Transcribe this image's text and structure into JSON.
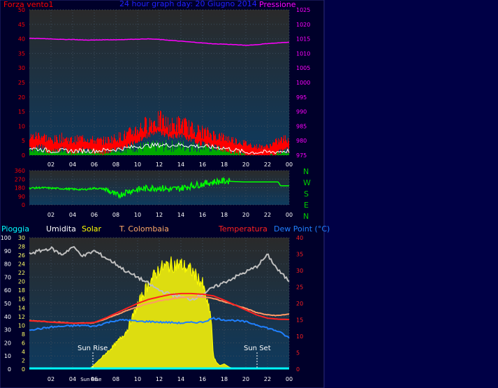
{
  "colors": {
    "background": "#000046",
    "frame": "#00002a",
    "plot_top": "#2a2a2a",
    "plot_bottom": "#0e3a5e",
    "grid": "#3c4c5c",
    "wind_avg": "#00aa00",
    "wind_gust": "#ff0000",
    "wind_mean_line": "#ffffff",
    "pressure": "#ff00ff",
    "direction": "#00ff00",
    "direction_label": "#00cc00",
    "rain": "#00ffff",
    "humidity": "#c0c0c0",
    "solar": "#ffff00",
    "colombaia": "#ff9966",
    "temperature": "#ff2020",
    "dewpoint": "#2080ff",
    "axis_text": "#ffffff",
    "left_axis_text": "#ff0000"
  },
  "wind_panel": {
    "title": "24 hour graph day:  20 Giugno 2014",
    "left_label": "Forza vento1",
    "right_label": "Pressione"
  },
  "direction_panel": {
    "compass": [
      "N",
      "W",
      "S",
      "E",
      "N"
    ]
  },
  "lower_panel": {
    "legend": {
      "rain": "Pioggia",
      "humidity": "Umidita",
      "solar": "Solar",
      "colombaia": "T. Colombaia",
      "temperature": "Temperatura",
      "dewpoint": "Dew Point (°C)"
    },
    "sunrise_label": "Sun Rise",
    "sunset_label": "Sun Set",
    "sunrise_axis_label": "Sun Rise"
  },
  "chart_data": [
    {
      "type": "line",
      "id": "wind_pressure",
      "title": "24 hour graph day:  20 Giugno 2014",
      "x_ticks": [
        "02",
        "04",
        "06",
        "08",
        "10",
        "12",
        "14",
        "16",
        "18",
        "20",
        "22",
        "00"
      ],
      "x_range_hours": [
        0,
        24
      ],
      "left_axis": {
        "label": "Forza vento1",
        "ticks": [
          0,
          5,
          10,
          15,
          20,
          25,
          30,
          35,
          40,
          45,
          50
        ],
        "range": [
          0,
          50
        ]
      },
      "right_axis": {
        "label": "Pressione",
        "ticks": [
          975,
          980,
          985,
          990,
          995,
          1000,
          1005,
          1010,
          1015,
          1020,
          1025
        ],
        "range": [
          975,
          1025
        ]
      },
      "series": [
        {
          "name": "Pressione",
          "axis": "right",
          "x": [
            0,
            1,
            2,
            3,
            4,
            5,
            6,
            7,
            8,
            9,
            10,
            11,
            12,
            13,
            14,
            15,
            16,
            17,
            18,
            19,
            20,
            21,
            22,
            23,
            24
          ],
          "y": [
            1015.2,
            1015.1,
            1015.0,
            1014.8,
            1014.8,
            1014.6,
            1014.6,
            1014.7,
            1014.7,
            1014.8,
            1014.9,
            1015.0,
            1014.8,
            1014.5,
            1014.2,
            1013.9,
            1013.6,
            1013.3,
            1013.2,
            1013.0,
            1012.8,
            1013.0,
            1013.4,
            1013.6,
            1013.9
          ]
        },
        {
          "name": "gust",
          "x": [
            0,
            1,
            2,
            3,
            4,
            5,
            6,
            7,
            8,
            9,
            10,
            11,
            12,
            13,
            14,
            15,
            16,
            17,
            18,
            19,
            20,
            21,
            22,
            23,
            24
          ],
          "y": [
            6,
            7,
            5,
            6,
            5,
            6,
            5,
            5,
            6,
            7,
            9,
            11,
            12,
            10,
            11,
            9,
            8,
            7,
            6,
            5,
            4,
            3,
            3,
            5,
            6
          ]
        },
        {
          "name": "average",
          "x": [
            0,
            2,
            4,
            6,
            8,
            10,
            12,
            14,
            16,
            18,
            20,
            22,
            24
          ],
          "y": [
            2.5,
            1.5,
            1.5,
            1.5,
            2.0,
            3.0,
            3.5,
            3.5,
            3.0,
            2.5,
            1.0,
            1.0,
            1.5
          ]
        }
      ]
    },
    {
      "type": "line",
      "id": "wind_direction",
      "x_ticks": [
        "02",
        "04",
        "06",
        "08",
        "10",
        "12",
        "14",
        "16",
        "18",
        "20",
        "22",
        "00"
      ],
      "y_axis": {
        "ticks": [
          0,
          90,
          180,
          270,
          360
        ],
        "range": [
          0,
          360
        ]
      },
      "series": [
        {
          "name": "direction",
          "x": [
            0,
            1,
            2,
            3,
            4,
            5,
            6,
            7,
            7.5,
            8,
            8.5,
            9,
            10,
            11,
            12,
            13,
            14,
            15,
            16,
            17,
            18,
            19,
            20,
            21,
            22,
            23,
            23.2,
            24
          ],
          "y": [
            175,
            180,
            175,
            170,
            165,
            160,
            175,
            165,
            135,
            100,
            110,
            140,
            160,
            175,
            180,
            160,
            175,
            200,
            220,
            240,
            250,
            245,
            240,
            240,
            240,
            240,
            200,
            200
          ]
        }
      ]
    },
    {
      "type": "line",
      "id": "temperature_humidity_solar",
      "x_ticks": [
        "02",
        "04",
        "Sun Rise",
        "06",
        "08",
        "10",
        "12",
        "14",
        "16",
        "18",
        "20",
        "22",
        "00"
      ],
      "left_axis": {
        "label": "Pioggia / Umidita",
        "ticks": [
          0,
          10,
          20,
          30,
          40,
          50,
          60,
          70,
          80,
          90,
          100
        ],
        "range": [
          0,
          100
        ]
      },
      "solar_axis": {
        "label": "Solar",
        "ticks": [
          0,
          2,
          4,
          6,
          8,
          10,
          12,
          14,
          16,
          18,
          20,
          22,
          24,
          26,
          28,
          30
        ],
        "range": [
          0,
          30
        ]
      },
      "right_axis": {
        "label": "Temperatura (°C)",
        "ticks": [
          0,
          5,
          10,
          15,
          20,
          25,
          30,
          35,
          40
        ],
        "range": [
          0,
          40
        ]
      },
      "annotations": [
        {
          "label": "Sun Rise",
          "x": 5.7
        },
        {
          "label": "Sun Set",
          "x": 21.2
        }
      ],
      "series": [
        {
          "name": "Umidita",
          "axis": "left",
          "x": [
            0,
            1,
            2,
            3,
            4,
            5,
            6,
            7,
            8,
            9,
            10,
            11,
            12,
            13,
            14,
            15,
            16,
            17,
            18,
            19,
            20,
            21,
            22,
            23,
            24
          ],
          "y": [
            88,
            90,
            92,
            87,
            93,
            86,
            90,
            85,
            80,
            74,
            70,
            65,
            60,
            57,
            55,
            53,
            57,
            62,
            66,
            70,
            74,
            78,
            87,
            75,
            67
          ]
        },
        {
          "name": "Solar",
          "axis": "solar",
          "x": [
            0,
            5.5,
            6,
            7,
            8,
            9,
            10,
            11,
            12,
            13,
            14,
            15,
            16,
            16.8,
            17,
            17.3,
            17.6,
            18,
            18.5,
            19,
            20,
            21,
            24
          ],
          "y": [
            0,
            0,
            1,
            3.5,
            6,
            9,
            15,
            20,
            23.5,
            24.5,
            24.5,
            23,
            20,
            12,
            3,
            1.5,
            0.8,
            1.2,
            0.4,
            0.2,
            0.1,
            0,
            0
          ]
        },
        {
          "name": "T. Colombaia",
          "axis": "right",
          "x": [
            0,
            1,
            2,
            3,
            4,
            5,
            6,
            7,
            8,
            9,
            10,
            11,
            12,
            13,
            14,
            15,
            16,
            17,
            18,
            19,
            20,
            21,
            22,
            23,
            24
          ],
          "y": [
            14.8,
            14.6,
            14.4,
            14.2,
            14.0,
            14.0,
            14.1,
            15.2,
            16.5,
            17.8,
            19.0,
            20.0,
            20.8,
            21.3,
            21.8,
            22.0,
            22.0,
            21.5,
            20.5,
            19.5,
            18.5,
            17.2,
            16.5,
            16.3,
            16.8
          ]
        },
        {
          "name": "Temperatura",
          "axis": "right",
          "x": [
            0,
            1,
            2,
            3,
            4,
            5,
            6,
            7,
            8,
            9,
            10,
            11,
            12,
            13,
            14,
            15,
            16,
            17,
            18,
            19,
            20,
            21,
            22,
            23,
            24
          ],
          "y": [
            14.7,
            14.6,
            14.3,
            14.1,
            14.0,
            14.0,
            14.2,
            15.5,
            17.0,
            18.5,
            20.0,
            21.2,
            22.0,
            22.7,
            23.0,
            23.0,
            22.8,
            22.3,
            21.0,
            19.5,
            18.0,
            16.5,
            15.5,
            15.2,
            15.1
          ]
        },
        {
          "name": "Dew Point",
          "axis": "right",
          "x": [
            0,
            1,
            2,
            3,
            4,
            5,
            6,
            7,
            8,
            9,
            10,
            11,
            12,
            13,
            14,
            15,
            16,
            17,
            18,
            19,
            20,
            21,
            22,
            23,
            24
          ],
          "y": [
            12.0,
            12.3,
            12.8,
            13.0,
            13.2,
            13.3,
            13.0,
            14.0,
            14.8,
            15.0,
            14.5,
            14.5,
            14.3,
            14.2,
            14.0,
            14.2,
            14.3,
            15.5,
            15.0,
            14.8,
            14.4,
            13.5,
            12.5,
            11.5,
            9.5
          ]
        },
        {
          "name": "Pioggia",
          "axis": "left",
          "x": [
            0,
            24
          ],
          "y": [
            0,
            0
          ]
        }
      ]
    }
  ]
}
